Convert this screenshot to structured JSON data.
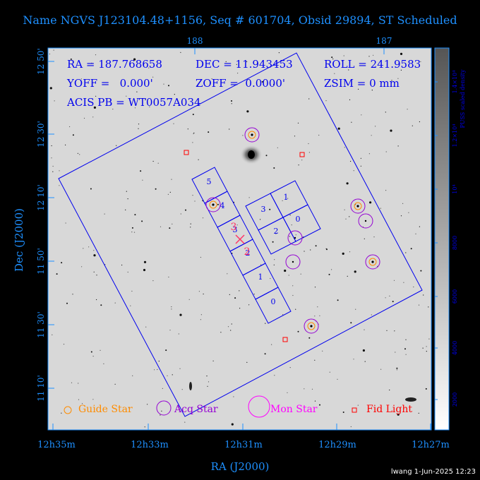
{
  "title": "Name NGVS J123104.48+1156, Seq # 601704, Obsid 29894, ST Scheduled",
  "info": {
    "ra": "RA = 187.768658",
    "dec": "DEC = 11.943453",
    "roll": "ROLL = 241.9583",
    "yoff": "YOFF =   0.000'",
    "zoff": "ZOFF =  0.0000'",
    "zsim": "ZSIM = 0 mm",
    "acis": "ACIS PB = WT0057A034"
  },
  "axes": {
    "xlabel": "RA (J2000)",
    "ylabel": "Dec (J2000)",
    "x_ticks_bottom": [
      "12h35m",
      "12h33m",
      "12h31m",
      "12h29m",
      "12h27m"
    ],
    "x_ticks_top": [
      "188",
      "187"
    ],
    "y_ticks": [
      "12 50'",
      "12 30'",
      "12 10'",
      "11 50'",
      "11 30'",
      "11 10'"
    ]
  },
  "colorbar": {
    "label": "PUSS scaled density",
    "ticks": [
      "2000",
      "4000",
      "6000",
      "8000",
      "10⁴",
      "1.2×10⁴",
      "1.4×10⁴"
    ]
  },
  "legend": {
    "guide_star": "Guide Star",
    "acq_star": "Acq Star",
    "mon_star": "Mon Star",
    "fid_light": "Fid Light"
  },
  "ccd_labels": {
    "s5": "5",
    "s4": "4",
    "s3": "3",
    "s2": "2",
    "s1": "1",
    "s0": "0",
    "i3": "3",
    "i1": "1",
    "i2": "2",
    "i0": "0"
  },
  "aimpoint_labels": {
    "upper": "3",
    "lower": "2"
  },
  "footer": "lwang  1-Jun-2025 12:23",
  "colors": {
    "frame_text": "#1e90ff",
    "overlay": "#0000ee",
    "guide_star": "#ff8c00",
    "acq_star": "#9400d3",
    "mon_star": "#ff00ff",
    "fid_light": "#ff0000",
    "aimpoint": "#ff3366"
  }
}
